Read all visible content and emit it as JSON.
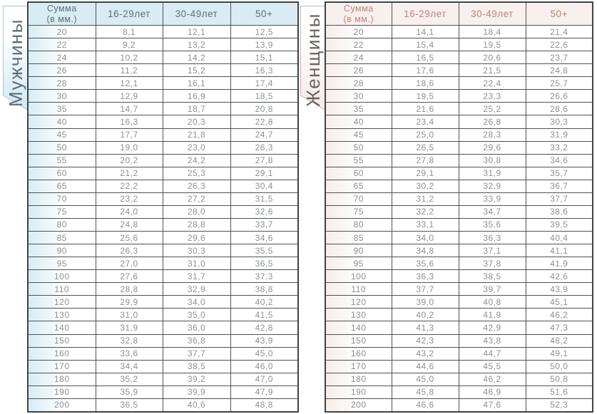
{
  "chart_data": [
    {
      "type": "table",
      "title": "Мужчины",
      "columns": [
        "Сумма (в мм.)",
        "16-29лет",
        "30-49лет",
        "50+"
      ],
      "column_header_lines": {
        "sum_line1": "Сумма",
        "sum_line2": "(в мм.)",
        "age_16_29": "16-29лет",
        "age_30_49": "30-49лет",
        "age_50_plus": "50+"
      },
      "rows": [
        [
          "20",
          "8,1",
          "12,1",
          "12,5"
        ],
        [
          "22",
          "9,2",
          "13,2",
          "13,9"
        ],
        [
          "24",
          "10,2",
          "14,2",
          "15,1"
        ],
        [
          "26",
          "11,2",
          "15,2",
          "16,3"
        ],
        [
          "28",
          "12,1",
          "16,1",
          "17,4"
        ],
        [
          "30",
          "12,9",
          "16,9",
          "18,5"
        ],
        [
          "35",
          "14,7",
          "18,7",
          "20,8"
        ],
        [
          "40",
          "16,3",
          "20,3",
          "22,8"
        ],
        [
          "45",
          "17,7",
          "21,8",
          "24,7"
        ],
        [
          "50",
          "19,0",
          "23,0",
          "26,3"
        ],
        [
          "55",
          "20,2",
          "24,2",
          "27,8"
        ],
        [
          "60",
          "21,2",
          "25,3",
          "29,1"
        ],
        [
          "65",
          "22,2",
          "26,3",
          "30,4"
        ],
        [
          "70",
          "23,2",
          "27,2",
          "31,5"
        ],
        [
          "75",
          "24,0",
          "28,0",
          "32,6"
        ],
        [
          "80",
          "24,8",
          "28,8",
          "33,7"
        ],
        [
          "85",
          "25,6",
          "29,6",
          "34,6"
        ],
        [
          "90",
          "26,3",
          "30,3",
          "35,5"
        ],
        [
          "95",
          "27,0",
          "31,0",
          "36,5"
        ],
        [
          "100",
          "27,6",
          "31,7",
          "37,3"
        ],
        [
          "110",
          "28,8",
          "32,9",
          "38,8"
        ],
        [
          "120",
          "29,9",
          "34,0",
          "40,2"
        ],
        [
          "130",
          "31,0",
          "35,0",
          "41,5"
        ],
        [
          "140",
          "31,9",
          "36,0",
          "42,8"
        ],
        [
          "150",
          "32,8",
          "36,8",
          "43,9"
        ],
        [
          "160",
          "33,6",
          "37,7",
          "45,0"
        ],
        [
          "170",
          "34,4",
          "38,5",
          "46,0"
        ],
        [
          "180",
          "35,2",
          "39,2",
          "47,0"
        ],
        [
          "190",
          "35,9",
          "39,9",
          "47,9"
        ],
        [
          "200",
          "36,5",
          "40,6",
          "48,8"
        ]
      ]
    },
    {
      "type": "table",
      "title": "Женщины",
      "columns": [
        "Сумма (в мм.)",
        "16-29лет",
        "30-49лет",
        "50+"
      ],
      "column_header_lines": {
        "sum_line1": "Сумма",
        "sum_line2": "(в мм.)",
        "age_16_29": "16-29лет",
        "age_30_49": "30-49лет",
        "age_50_plus": "50+"
      },
      "rows": [
        [
          "20",
          "14,1",
          "18,4",
          "21,4"
        ],
        [
          "22",
          "15,4",
          "19,5",
          "22,6"
        ],
        [
          "24",
          "16,5",
          "20,6",
          "23,7"
        ],
        [
          "26",
          "17,6",
          "21,5",
          "24,8"
        ],
        [
          "28",
          "18,6",
          "22,4",
          "25,7"
        ],
        [
          "30",
          "19,5",
          "23,3",
          "26,6"
        ],
        [
          "35",
          "21,6",
          "25,2",
          "28,6"
        ],
        [
          "40",
          "23,4",
          "26,8",
          "30,3"
        ],
        [
          "45",
          "25,0",
          "28,3",
          "31,9"
        ],
        [
          "50",
          "26,5",
          "29,6",
          "33,2"
        ],
        [
          "55",
          "27,8",
          "30,8",
          "34,6"
        ],
        [
          "60",
          "29,1",
          "31,9",
          "35,7"
        ],
        [
          "65",
          "30,2",
          "32,9",
          "36,7"
        ],
        [
          "70",
          "31,2",
          "33,9",
          "37,7"
        ],
        [
          "75",
          "32,2",
          "34,7",
          "38,6"
        ],
        [
          "80",
          "33,1",
          "35,6",
          "39,5"
        ],
        [
          "85",
          "34,0",
          "36,3",
          "40,4"
        ],
        [
          "90",
          "34,8",
          "37,1",
          "41,1"
        ],
        [
          "95",
          "35,6",
          "37,8",
          "41,9"
        ],
        [
          "100",
          "36,3",
          "38,5",
          "42,6"
        ],
        [
          "110",
          "37,7",
          "39,7",
          "43,9"
        ],
        [
          "120",
          "39,0",
          "40,8",
          "45,1"
        ],
        [
          "130",
          "40,2",
          "41,9",
          "46,2"
        ],
        [
          "140",
          "41,3",
          "42,9",
          "47,3"
        ],
        [
          "150",
          "42,3",
          "43,8",
          "48,2"
        ],
        [
          "160",
          "43,2",
          "44,7",
          "49,1"
        ],
        [
          "170",
          "44,6",
          "45,5",
          "50,0"
        ],
        [
          "180",
          "45,0",
          "46,2",
          "50,8"
        ],
        [
          "190",
          "45,8",
          "46,9",
          "51,6"
        ],
        [
          "200",
          "46,6",
          "47,6",
          "52,3"
        ]
      ]
    }
  ],
  "style": {
    "men_header_bg": "#d9ecf3",
    "men_header_text": "#5d6f79",
    "men_row_tint": "#d7ecf4",
    "men_ribbon_gradient_bottom": "#cde8f2",
    "men_ribbon_stroke": "#a9c4ce",
    "men_title_text": "#5e6d77",
    "women_header_bg": "#f8f0ee",
    "women_header_text": "#c28279",
    "women_row_tint": "#f7edeb",
    "women_ribbon_gradient_bottom": "#f3e8e6",
    "women_ribbon_stroke": "#c3b8b4",
    "women_title_text": "#6a6461",
    "value_text": "#8d9094",
    "border_dark": "#3f4345"
  }
}
